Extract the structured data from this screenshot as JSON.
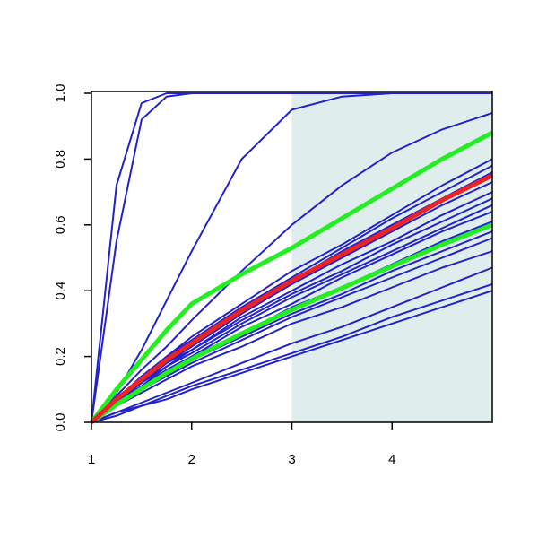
{
  "chart_data": {
    "type": "line",
    "x": [
      1,
      1.25,
      1.5,
      1.75,
      2,
      2.5,
      3,
      3.5,
      4,
      4.5,
      5
    ],
    "xlim": [
      1,
      5
    ],
    "xticks": [
      1,
      2,
      3,
      4
    ],
    "ylim": [
      0,
      1
    ],
    "yticks": [
      {
        "value": 0,
        "label": "0.0"
      },
      0.2,
      0.4,
      0.6,
      0.8,
      {
        "value": 1,
        "label": "1.0"
      }
    ],
    "shaded_xrange": [
      3,
      5
    ],
    "shade_color": "#e0eded",
    "series": [
      {
        "color": "#2222cc",
        "values": [
          0,
          0.72,
          0.97,
          1,
          1,
          1,
          1,
          1,
          1,
          1,
          1
        ]
      },
      {
        "color": "#2222cc",
        "values": [
          0,
          0.55,
          0.92,
          0.99,
          1,
          1,
          1,
          1,
          1,
          1,
          1
        ]
      },
      {
        "color": "#2222cc",
        "values": [
          0,
          0.09,
          0.22,
          0.37,
          0.52,
          0.8,
          0.95,
          0.99,
          1,
          1,
          1
        ]
      },
      {
        "color": "#2222cc",
        "values": [
          0,
          0.08,
          0.16,
          0.23,
          0.31,
          0.46,
          0.6,
          0.72,
          0.82,
          0.89,
          0.94
        ]
      },
      {
        "color": "#2222cc",
        "values": [
          0,
          0.07,
          0.14,
          0.2,
          0.26,
          0.36,
          0.46,
          0.54,
          0.63,
          0.72,
          0.8
        ]
      },
      {
        "color": "#2222cc",
        "values": [
          0,
          0.07,
          0.13,
          0.2,
          0.25,
          0.35,
          0.44,
          0.53,
          0.62,
          0.7,
          0.78
        ]
      },
      {
        "color": "#2222cc",
        "values": [
          0,
          0.07,
          0.13,
          0.19,
          0.24,
          0.34,
          0.43,
          0.52,
          0.6,
          0.68,
          0.76
        ]
      },
      {
        "color": "#2222cc",
        "values": [
          0,
          0.07,
          0.12,
          0.18,
          0.23,
          0.33,
          0.42,
          0.5,
          0.58,
          0.66,
          0.73
        ]
      },
      {
        "color": "#2222cc",
        "values": [
          0,
          0.06,
          0.12,
          0.18,
          0.22,
          0.32,
          0.4,
          0.48,
          0.55,
          0.63,
          0.7
        ]
      },
      {
        "color": "#2222cc",
        "values": [
          0,
          0.06,
          0.12,
          0.17,
          0.22,
          0.31,
          0.39,
          0.46,
          0.54,
          0.61,
          0.68
        ]
      },
      {
        "color": "#2222cc",
        "values": [
          0,
          0.06,
          0.11,
          0.17,
          0.21,
          0.3,
          0.38,
          0.45,
          0.52,
          0.59,
          0.66
        ]
      },
      {
        "color": "#2222cc",
        "values": [
          0,
          0.06,
          0.11,
          0.16,
          0.2,
          0.29,
          0.36,
          0.44,
          0.51,
          0.58,
          0.64
        ]
      },
      {
        "color": "#2222cc",
        "values": [
          0,
          0.05,
          0.1,
          0.15,
          0.2,
          0.27,
          0.35,
          0.41,
          0.48,
          0.55,
          0.61
        ]
      },
      {
        "color": "#2222cc",
        "values": [
          0,
          0.05,
          0.1,
          0.15,
          0.19,
          0.26,
          0.33,
          0.39,
          0.46,
          0.52,
          0.58
        ]
      },
      {
        "color": "#2222cc",
        "values": [
          0,
          0.05,
          0.1,
          0.14,
          0.18,
          0.25,
          0.32,
          0.38,
          0.44,
          0.5,
          0.56
        ]
      },
      {
        "color": "#2222cc",
        "values": [
          0,
          0.05,
          0.09,
          0.13,
          0.17,
          0.23,
          0.3,
          0.35,
          0.41,
          0.47,
          0.52
        ]
      },
      {
        "color": "#2222cc",
        "values": [
          0,
          0.03,
          0.06,
          0.09,
          0.12,
          0.18,
          0.24,
          0.29,
          0.35,
          0.41,
          0.47
        ]
      },
      {
        "color": "#2222cc",
        "values": [
          0,
          0.03,
          0.05,
          0.08,
          0.11,
          0.16,
          0.21,
          0.26,
          0.32,
          0.37,
          0.42
        ]
      },
      {
        "color": "#2222cc",
        "values": [
          0,
          0.02,
          0.05,
          0.07,
          0.1,
          0.15,
          0.2,
          0.25,
          0.3,
          0.35,
          0.4
        ]
      },
      {
        "color": "#22ee22",
        "values": [
          0,
          0.1,
          0.19,
          0.28,
          0.36,
          0.45,
          0.53,
          0.62,
          0.71,
          0.8,
          0.88
        ]
      },
      {
        "color": "#22ee22",
        "values": [
          0,
          0.054,
          0.102,
          0.15,
          0.192,
          0.27,
          0.342,
          0.408,
          0.474,
          0.54,
          0.6
        ]
      },
      {
        "color": "#ee2222",
        "values": [
          0,
          0.07,
          0.13,
          0.19,
          0.24,
          0.34,
          0.43,
          0.51,
          0.59,
          0.675,
          0.75
        ]
      }
    ]
  }
}
